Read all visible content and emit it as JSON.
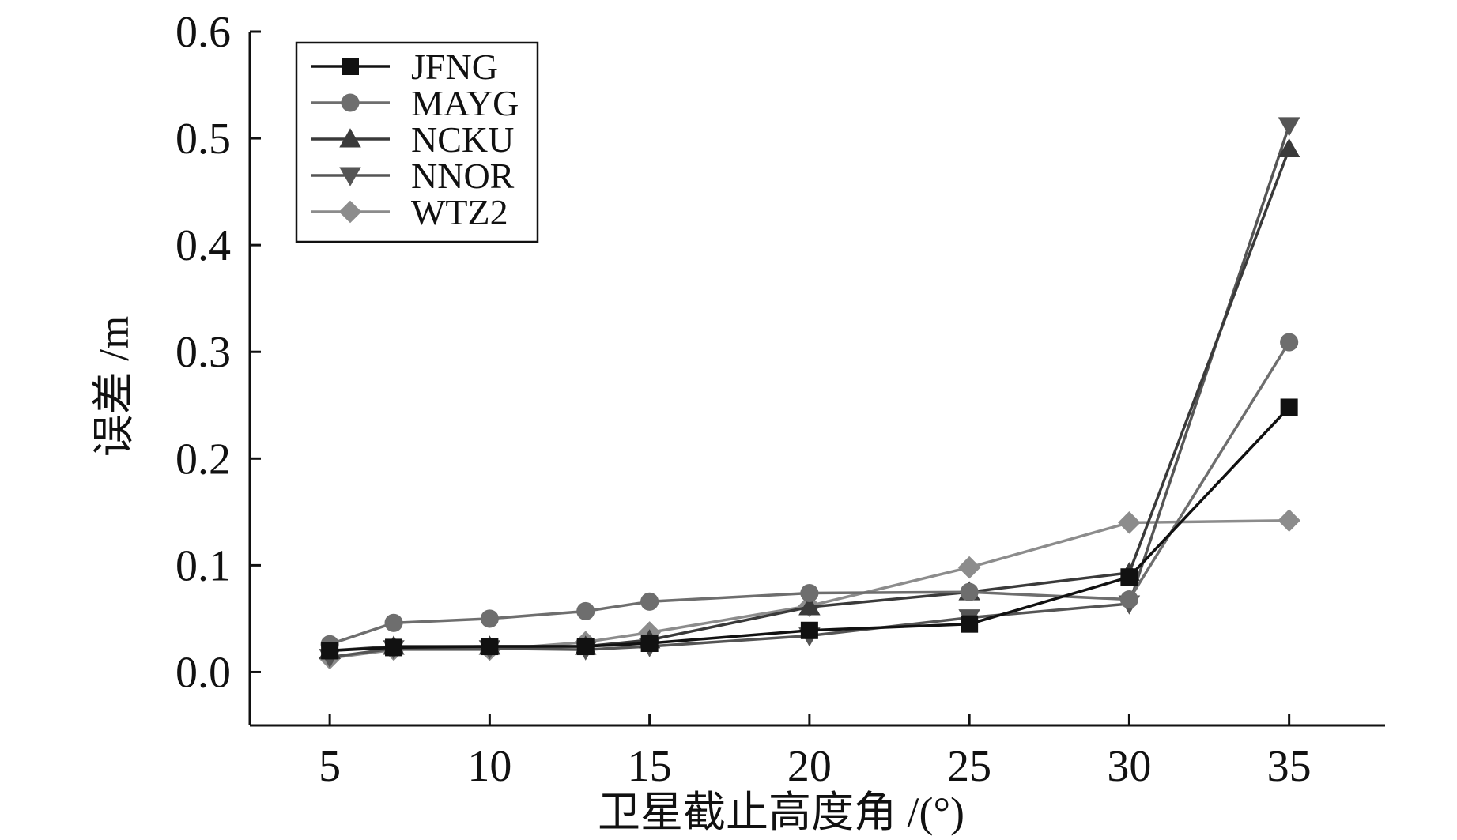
{
  "chart_data": {
    "type": "line",
    "title": "",
    "xlabel": "卫星截止高度角 /(°)",
    "ylabel": "误差 /m",
    "xlim": [
      2.5,
      38
    ],
    "ylim": [
      -0.05,
      0.6
    ],
    "x_ticks": [
      5,
      10,
      15,
      20,
      25,
      30,
      35
    ],
    "x_tick_labels": [
      "5",
      "10",
      "15",
      "20",
      "25",
      "30",
      "35"
    ],
    "y_ticks": [
      0.0,
      0.1,
      0.2,
      0.3,
      0.4,
      0.5,
      0.6
    ],
    "y_tick_labels": [
      "0.0",
      "0.1",
      "0.2",
      "0.3",
      "0.4",
      "0.5",
      "0.6"
    ],
    "grid": false,
    "legend_position": "top-left",
    "x": [
      5,
      7,
      10,
      13,
      15,
      20,
      25,
      30,
      35
    ],
    "series": [
      {
        "name": "JFNG",
        "marker": "square",
        "color": "#111111",
        "values": [
          0.02,
          0.023,
          0.024,
          0.024,
          0.027,
          0.039,
          0.045,
          0.089,
          0.248
        ]
      },
      {
        "name": "MAYG",
        "marker": "circle",
        "color": "#6e6e6e",
        "values": [
          0.026,
          0.046,
          0.05,
          0.057,
          0.066,
          0.074,
          0.075,
          0.068,
          0.309
        ]
      },
      {
        "name": "NCKU",
        "marker": "triangle-up",
        "color": "#3a3a3a",
        "values": [
          0.02,
          0.024,
          0.024,
          0.024,
          0.03,
          0.061,
          0.075,
          0.093,
          0.49
        ]
      },
      {
        "name": "NNOR",
        "marker": "triangle-down",
        "color": "#555555",
        "values": [
          0.014,
          0.022,
          0.022,
          0.021,
          0.024,
          0.034,
          0.051,
          0.064,
          0.512
        ]
      },
      {
        "name": "WTZ2",
        "marker": "diamond",
        "color": "#8c8c8c",
        "values": [
          0.013,
          0.021,
          0.021,
          0.028,
          0.037,
          0.062,
          0.098,
          0.14,
          0.142
        ]
      }
    ]
  }
}
